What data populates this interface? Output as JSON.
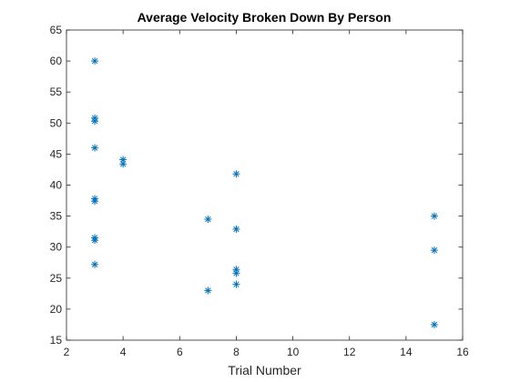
{
  "chart_data": {
    "type": "scatter",
    "title": "Average Velocity Broken Down By Person",
    "xlabel": "Trial Number",
    "ylabel": "",
    "xlim": [
      2,
      16
    ],
    "ylim": [
      15,
      65
    ],
    "xticks": [
      "2",
      "4",
      "6",
      "8",
      "10",
      "12",
      "14",
      "16"
    ],
    "yticks": [
      "15",
      "20",
      "25",
      "30",
      "35",
      "40",
      "45",
      "50",
      "55",
      "60",
      "65"
    ],
    "grid": false,
    "legend": "none",
    "marker": "asterisk",
    "marker_color": "#0072bd",
    "series": [
      {
        "x": [
          3,
          3,
          3,
          3,
          3,
          3,
          3,
          3,
          3,
          4,
          4,
          7,
          7,
          8,
          8,
          8,
          8,
          8,
          15,
          15,
          15
        ],
        "y": [
          60,
          50.8,
          50.3,
          46,
          37.8,
          37.4,
          31.5,
          31.1,
          27.2,
          44.1,
          43.4,
          34.5,
          23,
          41.8,
          32.9,
          26.4,
          25.8,
          24,
          35,
          29.5,
          17.5
        ]
      }
    ]
  }
}
